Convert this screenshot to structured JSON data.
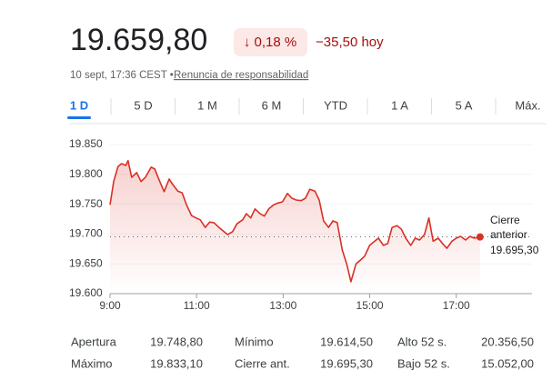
{
  "header": {
    "price": "19.659,80",
    "change_pct": "↓ 0,18 %",
    "change_abs": "−35,50 hoy",
    "timestamp": "10 sept, 17:36 CEST •",
    "disclaimer": "Renuncia de responsabilidad"
  },
  "tabs": [
    "1 D",
    "5 D",
    "1 M",
    "6 M",
    "YTD",
    "1 A",
    "5 A",
    "Máx."
  ],
  "chart_data": {
    "type": "line",
    "color": "#d93025",
    "x": [
      540,
      545,
      551,
      556,
      562,
      565,
      570,
      577,
      583,
      589,
      597,
      602,
      609,
      615,
      622,
      627,
      634,
      640,
      646,
      653,
      659,
      665,
      672,
      678,
      684,
      691,
      697,
      703,
      710,
      716,
      724,
      729,
      735,
      741,
      748,
      754,
      760,
      767,
      773,
      779,
      786,
      792,
      798,
      805,
      811,
      817,
      824,
      830,
      836,
      843,
      849,
      855,
      862,
      868,
      874,
      881,
      887,
      893,
      900,
      906,
      912,
      919,
      925,
      931,
      938,
      944,
      950,
      957,
      963,
      969,
      976,
      982,
      988,
      995,
      1001,
      1007,
      1014,
      1020,
      1026,
      1033,
      1039,
      1045,
      1053
    ],
    "values": [
      19749,
      19788,
      19813,
      19818,
      19815,
      19823,
      19795,
      19803,
      19788,
      19795,
      19812,
      19809,
      19788,
      19771,
      19792,
      19783,
      19772,
      19769,
      19749,
      19731,
      19727,
      19724,
      19711,
      19720,
      19719,
      19711,
      19705,
      19699,
      19704,
      19717,
      19724,
      19734,
      19727,
      19742,
      19734,
      19730,
      19742,
      19749,
      19752,
      19754,
      19768,
      19760,
      19757,
      19756,
      19760,
      19775,
      19772,
      19757,
      19722,
      19711,
      19722,
      19719,
      19673,
      19650,
      19620,
      19650,
      19656,
      19663,
      19681,
      19687,
      19693,
      19681,
      19684,
      19711,
      19714,
      19708,
      19693,
      19681,
      19693,
      19690,
      19699,
      19727,
      19688,
      19693,
      19684,
      19676,
      19688,
      19693,
      19696,
      19690,
      19696,
      19693,
      19695
    ],
    "xlim": [
      540,
      1125
    ],
    "ylim": [
      19600,
      19850
    ],
    "xticks": [
      {
        "value": 540,
        "label": "9:00"
      },
      {
        "value": 660,
        "label": "11:00"
      },
      {
        "value": 780,
        "label": "13:00"
      },
      {
        "value": 900,
        "label": "15:00"
      },
      {
        "value": 1020,
        "label": "17:00"
      }
    ],
    "yticks": [
      {
        "value": 19600,
        "label": "19.600"
      },
      {
        "value": 19650,
        "label": "19.650"
      },
      {
        "value": 19700,
        "label": "19.700"
      },
      {
        "value": 19750,
        "label": "19.750"
      },
      {
        "value": 19800,
        "label": "19.800"
      },
      {
        "value": 19850,
        "label": "19.850"
      }
    ],
    "grid": true,
    "reference_line": {
      "value": 19695.3,
      "label_lines": [
        "Cierre",
        "anterior"
      ],
      "value_label": "19.695,30"
    }
  },
  "stats": [
    [
      {
        "label": "Apertura",
        "value": "19.748,80"
      },
      {
        "label": "Mínimo",
        "value": "19.614,50"
      },
      {
        "label": "Alto 52 s.",
        "value": "20.356,50"
      }
    ],
    [
      {
        "label": "Máximo",
        "value": "19.833,10"
      },
      {
        "label": "Cierre ant.",
        "value": "19.695,30"
      },
      {
        "label": "Bajo 52 s.",
        "value": "15.052,00"
      }
    ]
  ]
}
